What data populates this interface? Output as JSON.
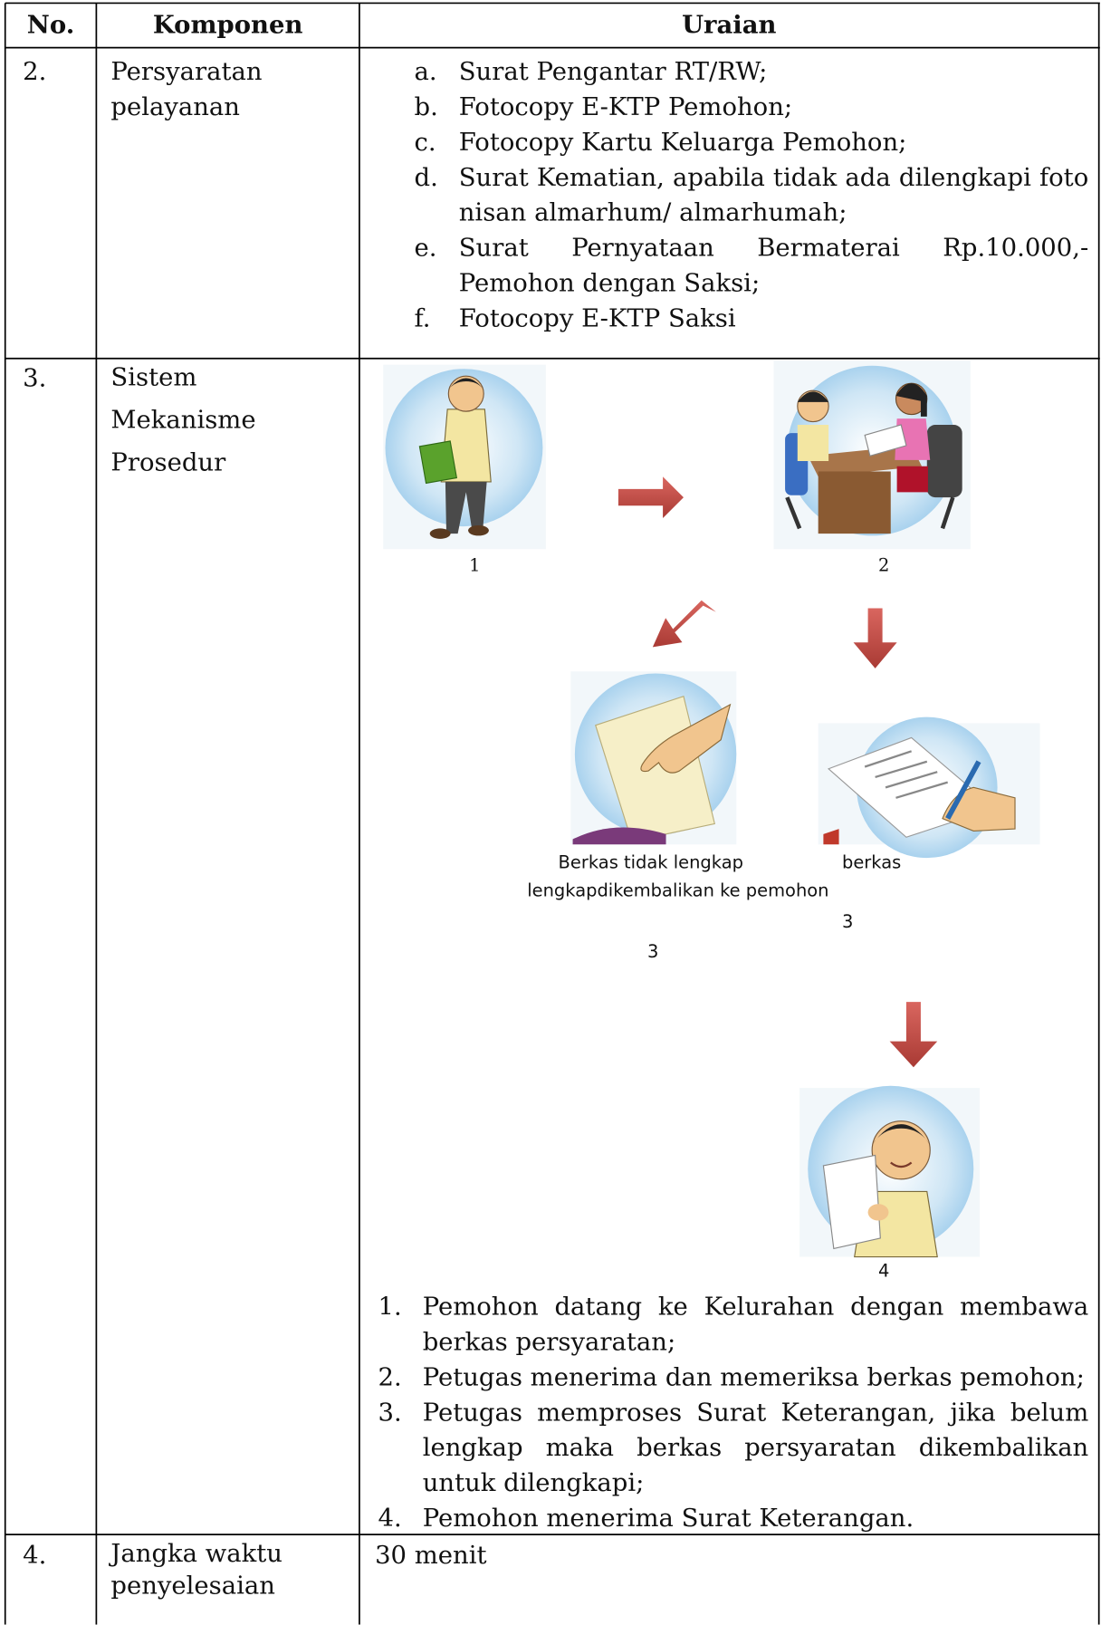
{
  "table": {
    "header": [
      "No.",
      "Komponen",
      "Uraian"
    ],
    "rows": [
      {
        "no": "2.",
        "komponen": "Persyaratan pelayanan",
        "items": [
          {
            "marker": "a.",
            "text": "Surat Pengantar RT/RW;"
          },
          {
            "marker": "b.",
            "text": "Fotocopy E-KTP Pemohon;"
          },
          {
            "marker": "c.",
            "text": "Fotocopy Kartu Keluarga Pemohon;"
          },
          {
            "marker": "d.",
            "text": "Surat Kematian, apabila tidak ada dilengkapi foto nisan almarhum/ almarhumah;"
          },
          {
            "marker": "e.",
            "text": "Surat Pernyataan Bermaterai Rp.10.000,- Pemohon dengan Saksi;"
          },
          {
            "marker": "f.",
            "text": "Fotocopy E-KTP Saksi"
          }
        ]
      },
      {
        "no": "3.",
        "komponen": "Sistem Mekanisme Prosedur",
        "diagram": {
          "labels": [
            "1",
            "2",
            "Berkas tidak lengkap",
            "berkas",
            "lengkapdikembalikan ke pemohon",
            "3",
            "3",
            "4"
          ]
        },
        "steps": [
          {
            "marker": "1.",
            "text": "Pemohon datang ke Kelurahan dengan membawa berkas persyaratan;"
          },
          {
            "marker": "2.",
            "text": "Petugas menerima dan memeriksa berkas pemohon;"
          },
          {
            "marker": "3.",
            "text": "Petugas memproses Surat Keterangan, jika belum lengkap maka berkas persyaratan dikembalikan untuk dilengkapi;"
          },
          {
            "marker": "4.",
            "text": "Pemohon menerima Surat Keterangan."
          }
        ]
      },
      {
        "no": "4.",
        "komponen": "Jangka waktu penyelesaian",
        "uraian": "30 menit"
      }
    ]
  }
}
